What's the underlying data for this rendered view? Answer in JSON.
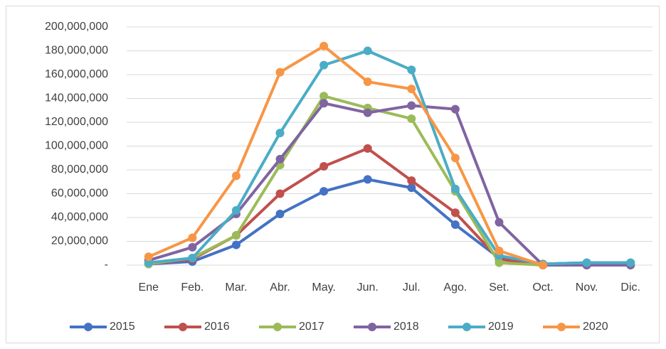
{
  "chart_data": {
    "type": "line",
    "categories": [
      "Ene",
      "Feb.",
      "Mar.",
      "Abr.",
      "May.",
      "Jun.",
      "Jul.",
      "Ago.",
      "Set.",
      "Oct.",
      "Nov.",
      "Dic."
    ],
    "series": [
      {
        "name": "2015",
        "color": "#4472c4",
        "values": [
          1000000,
          3000000,
          17000000,
          43000000,
          62000000,
          72000000,
          65000000,
          34000000,
          6000000,
          1000000,
          2000000,
          2000000
        ]
      },
      {
        "name": "2016",
        "color": "#c0504d",
        "values": [
          1000000,
          5000000,
          25000000,
          60000000,
          83000000,
          98000000,
          71000000,
          44000000,
          5000000,
          0,
          0,
          0
        ]
      },
      {
        "name": "2017",
        "color": "#9bbb59",
        "values": [
          1000000,
          6000000,
          25000000,
          84000000,
          142000000,
          132000000,
          123000000,
          62000000,
          2000000,
          0,
          0,
          0
        ]
      },
      {
        "name": "2018",
        "color": "#8064a2",
        "values": [
          4000000,
          15000000,
          43000000,
          89000000,
          136000000,
          128000000,
          134000000,
          131000000,
          36000000,
          0,
          0,
          0
        ]
      },
      {
        "name": "2019",
        "color": "#4bacc6",
        "values": [
          2000000,
          6000000,
          46000000,
          111000000,
          168000000,
          180000000,
          164000000,
          64000000,
          8000000,
          1000000,
          2000000,
          2000000
        ]
      },
      {
        "name": "2020",
        "color": "#f79646",
        "values": [
          7000000,
          23000000,
          75000000,
          162000000,
          184000000,
          154000000,
          148000000,
          90000000,
          12000000,
          0,
          null,
          null
        ]
      }
    ],
    "ylim": [
      0,
      200000000
    ],
    "yticks": [
      {
        "value": 0,
        "label": "-"
      },
      {
        "value": 20000000,
        "label": "20,000,000"
      },
      {
        "value": 40000000,
        "label": "40,000,000"
      },
      {
        "value": 60000000,
        "label": "60,000,000"
      },
      {
        "value": 80000000,
        "label": "80,000,000"
      },
      {
        "value": 100000000,
        "label": "100,000,000"
      },
      {
        "value": 120000000,
        "label": "120,000,000"
      },
      {
        "value": 140000000,
        "label": "140,000,000"
      },
      {
        "value": 160000000,
        "label": "160,000,000"
      },
      {
        "value": 180000000,
        "label": "180,000,000"
      },
      {
        "value": 200000000,
        "label": "200,000,000"
      }
    ],
    "grid": true,
    "legend": "bottom"
  }
}
